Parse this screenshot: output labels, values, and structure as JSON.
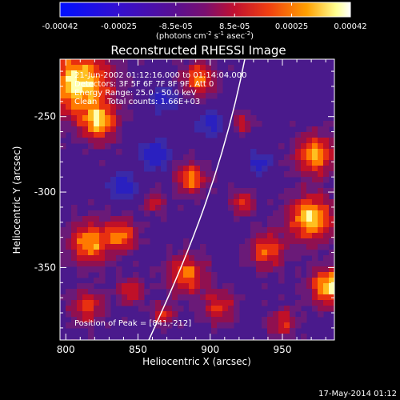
{
  "colorbar": {
    "tick_labels": [
      "-0.00042",
      "-0.00025",
      "-8.5e-05",
      "8.5e-05",
      "0.00025",
      "0.00042"
    ],
    "tick_values": [
      -0.00042,
      -0.00025,
      -8.5e-05,
      8.5e-05,
      0.00025,
      0.00042
    ],
    "range": [
      -0.00042,
      0.00042
    ],
    "units_main": "(photons cm",
    "units_exp1": "-2",
    "units_mid1": " s",
    "units_exp2": "-1",
    "units_mid2": " asec",
    "units_exp3": "-2",
    "units_close": ")",
    "colors": [
      "#0010ff",
      "#3a10c8",
      "#5a1090",
      "#6a2080",
      "#a01040",
      "#e02010",
      "#ff7000",
      "#ffb000",
      "#ffffc0",
      "#ffffff"
    ]
  },
  "image": {
    "title": "Reconstructed RHESSI Image",
    "info_lines": [
      "21-Jun-2002 01:12:16.000 to 01:14:04.000",
      "Detectors: 3F 5F 6F 7F 8F 9F, Att 0",
      "Energy Range: 25.0 - 50.0 keV",
      "Clean    Total counts: 1.66E+03"
    ],
    "peak_text": "Position of Peak = [841,-212]",
    "xlabel": "Heliocentric X (arcsec)",
    "ylabel": "Heliocentric Y (arcsec)",
    "xlim": [
      796,
      986
    ],
    "ylim": [
      -398,
      -212
    ],
    "x_ticks": [
      800,
      850,
      900,
      950
    ],
    "y_ticks": [
      -250,
      -300,
      -350
    ],
    "footer_date": "17-May-2014 01:12"
  }
}
